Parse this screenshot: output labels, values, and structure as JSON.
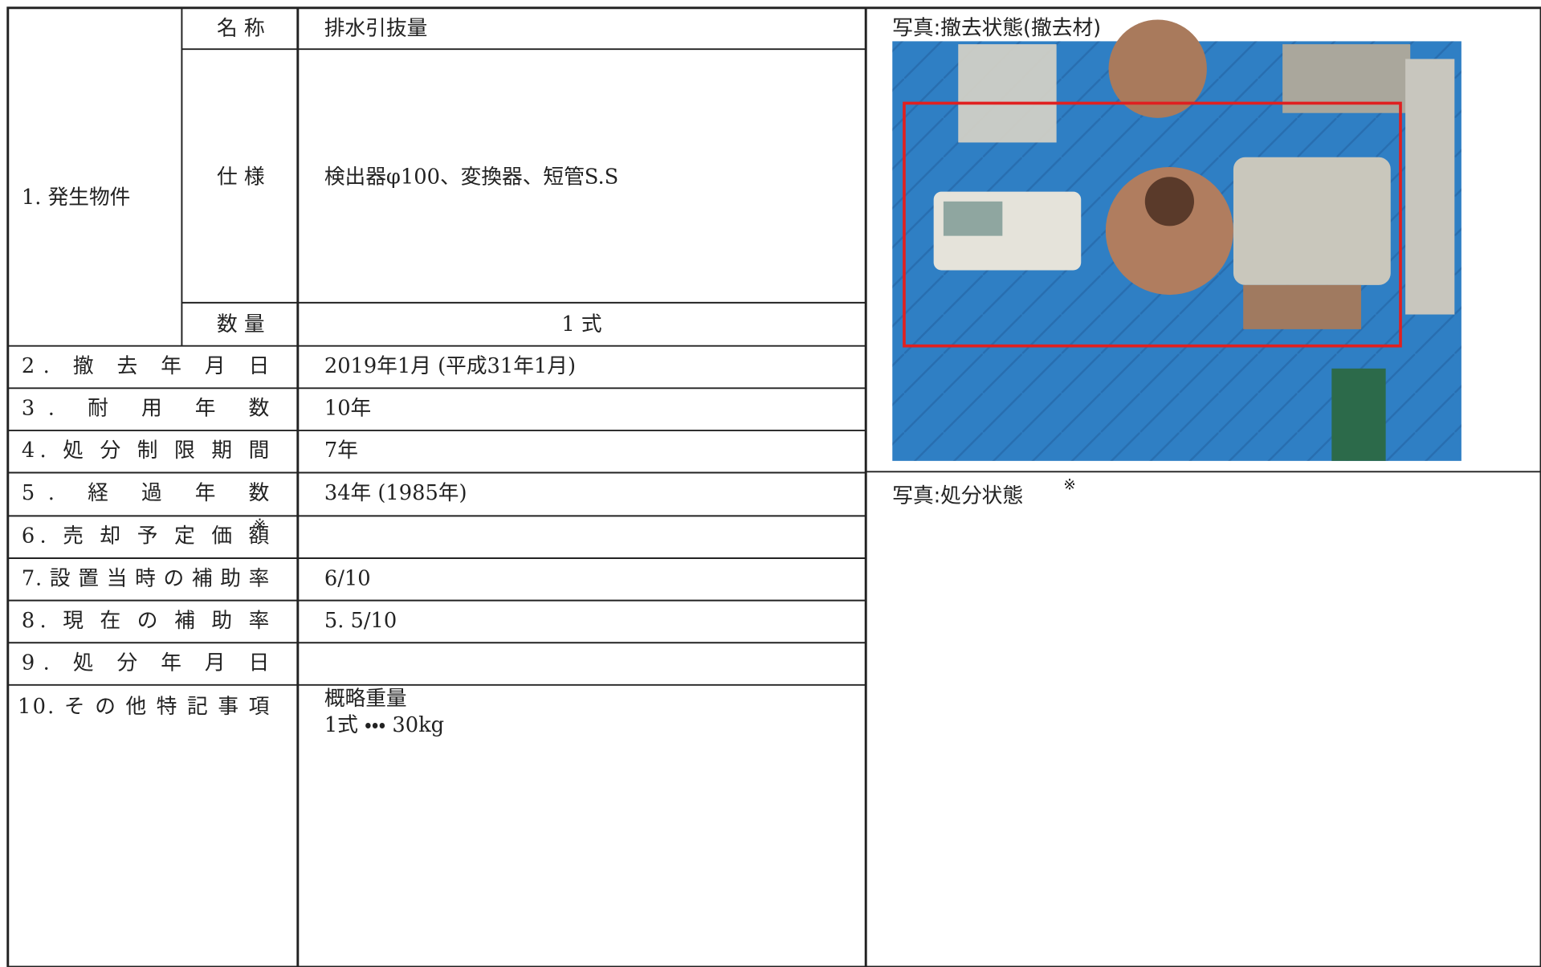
{
  "table": {
    "item1": {
      "label": "1. 発生物件",
      "rows": [
        {
          "label": "名 称",
          "value": "排水引抜量"
        },
        {
          "label": "仕 様",
          "value": "検出器φ100、変換器、短管S.S"
        },
        {
          "label": "数 量",
          "value": "1 式"
        }
      ]
    },
    "rows": [
      {
        "label": "2. 撤 去 年 月 日",
        "value": "2019年1月 (平成31年1月)"
      },
      {
        "label": "3. 耐 用 年 数",
        "value": "10年"
      },
      {
        "label": "4. 処 分 制 限 期 間",
        "value": "7年"
      },
      {
        "label": "5. 経 過 年 数",
        "value": "34年 (1985年)"
      },
      {
        "label": "6. 売 却 予 定 価 額",
        "note": "※"
      },
      {
        "label": "7. 設 置 当 時 の 補 助 率",
        "value": "6/10"
      },
      {
        "label": "8. 現 在 の 補 助 率",
        "value": "5. 5/10"
      },
      {
        "label": "9. 処 分 年 月 日"
      },
      {
        "label": "10. そ の 他 特 記 事 項",
        "lines": [
          "概略重量",
          "1式 ・・・ 30kg"
        ]
      }
    ]
  },
  "photos": [
    {
      "caption": "写真:撤去状態(撤去材)"
    },
    {
      "caption": "写真:処分状態",
      "note": "※"
    }
  ]
}
